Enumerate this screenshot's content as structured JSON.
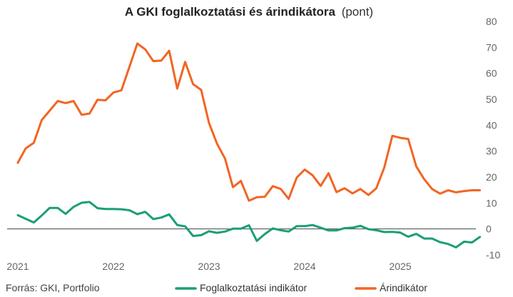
{
  "chart_data": {
    "type": "line",
    "title": "A GKI foglalkoztatási és árindikátora",
    "title_unit": "(pont)",
    "source": "Forrás: GKI, Portfolio",
    "y_axis_position": "right",
    "ylim": [
      -10,
      80
    ],
    "yticks": [
      -10,
      0,
      10,
      20,
      30,
      40,
      50,
      60,
      70,
      80
    ],
    "xlim": [
      2021,
      2025.85
    ],
    "xticks": [
      2021,
      2022,
      2023,
      2024,
      2025
    ],
    "xtick_labels": [
      "2021",
      "2022",
      "2023",
      "2024",
      "2025"
    ],
    "grid": false,
    "zero_line": true,
    "legend_position": "bottom",
    "colors": {
      "employment": "#1a9e78",
      "price": "#f26522"
    },
    "series": [
      {
        "name": "Foglalkoztatási indikátor",
        "color": "#1a9e78",
        "x": [
          2021.0,
          2021.083,
          2021.167,
          2021.25,
          2021.333,
          2021.417,
          2021.5,
          2021.583,
          2021.667,
          2021.75,
          2021.833,
          2021.917,
          2022.0,
          2022.083,
          2022.167,
          2022.25,
          2022.333,
          2022.417,
          2022.5,
          2022.583,
          2022.667,
          2022.75,
          2022.833,
          2022.917,
          2023.0,
          2023.083,
          2023.167,
          2023.25,
          2023.333,
          2023.417,
          2023.5,
          2023.583,
          2023.667,
          2023.75,
          2023.833,
          2023.917,
          2024.0,
          2024.083,
          2024.167,
          2024.25,
          2024.333,
          2024.417,
          2024.5,
          2024.583,
          2024.667,
          2024.75,
          2024.833,
          2024.917,
          2025.0,
          2025.083,
          2025.167,
          2025.25,
          2025.333,
          2025.417,
          2025.5,
          2025.583,
          2025.667,
          2025.75,
          2025.833
        ],
        "values": [
          5.3,
          3.9,
          2.5,
          5.2,
          8.1,
          8.1,
          5.8,
          8.5,
          10.1,
          10.4,
          8.0,
          7.7,
          7.7,
          7.6,
          7.2,
          5.7,
          6.6,
          3.8,
          4.4,
          5.6,
          1.5,
          1.0,
          -2.7,
          -2.4,
          -0.9,
          -1.5,
          -1.0,
          0.1,
          0.1,
          1.4,
          -4.6,
          -2.0,
          0.2,
          -0.5,
          -1.0,
          1.1,
          1.1,
          1.5,
          0.5,
          -0.6,
          -0.6,
          0.3,
          0.5,
          1.2,
          -0.1,
          -0.5,
          -1.2,
          -1.1,
          -1.4,
          -3.0,
          -1.9,
          -3.7,
          -3.7,
          -5.1,
          -5.8,
          -7.1,
          -4.9,
          -5.2,
          -3.1
        ]
      },
      {
        "name": "Árindikátor",
        "color": "#f26522",
        "x": [
          2021.0,
          2021.083,
          2021.167,
          2021.25,
          2021.333,
          2021.417,
          2021.5,
          2021.583,
          2021.667,
          2021.75,
          2021.833,
          2021.917,
          2022.0,
          2022.083,
          2022.167,
          2022.25,
          2022.333,
          2022.417,
          2022.5,
          2022.583,
          2022.667,
          2022.75,
          2022.833,
          2022.917,
          2023.0,
          2023.083,
          2023.167,
          2023.25,
          2023.333,
          2023.417,
          2023.5,
          2023.583,
          2023.667,
          2023.75,
          2023.833,
          2023.917,
          2024.0,
          2024.083,
          2024.167,
          2024.25,
          2024.333,
          2024.417,
          2024.5,
          2024.583,
          2024.667,
          2024.75,
          2024.833,
          2024.917,
          2025.0,
          2025.083,
          2025.167,
          2025.25,
          2025.333,
          2025.417,
          2025.5,
          2025.583,
          2025.667,
          2025.75,
          2025.833
        ],
        "values": [
          25.5,
          31.1,
          33.2,
          42.0,
          45.6,
          49.3,
          48.5,
          49.3,
          44.0,
          44.5,
          49.8,
          49.6,
          52.6,
          53.4,
          62.5,
          71.5,
          69.2,
          64.7,
          64.9,
          68.7,
          54.1,
          64.4,
          55.8,
          53.6,
          40.8,
          32.9,
          27.1,
          16.1,
          18.5,
          10.9,
          12.2,
          12.4,
          16.5,
          15.4,
          11.6,
          19.8,
          22.9,
          20.7,
          16.6,
          21.5,
          14.2,
          15.7,
          13.7,
          15.4,
          13.1,
          15.7,
          23.7,
          35.9,
          35.1,
          34.7,
          24.1,
          19.2,
          15.4,
          13.6,
          14.9,
          14.1,
          14.6,
          14.9,
          14.9
        ]
      }
    ]
  }
}
